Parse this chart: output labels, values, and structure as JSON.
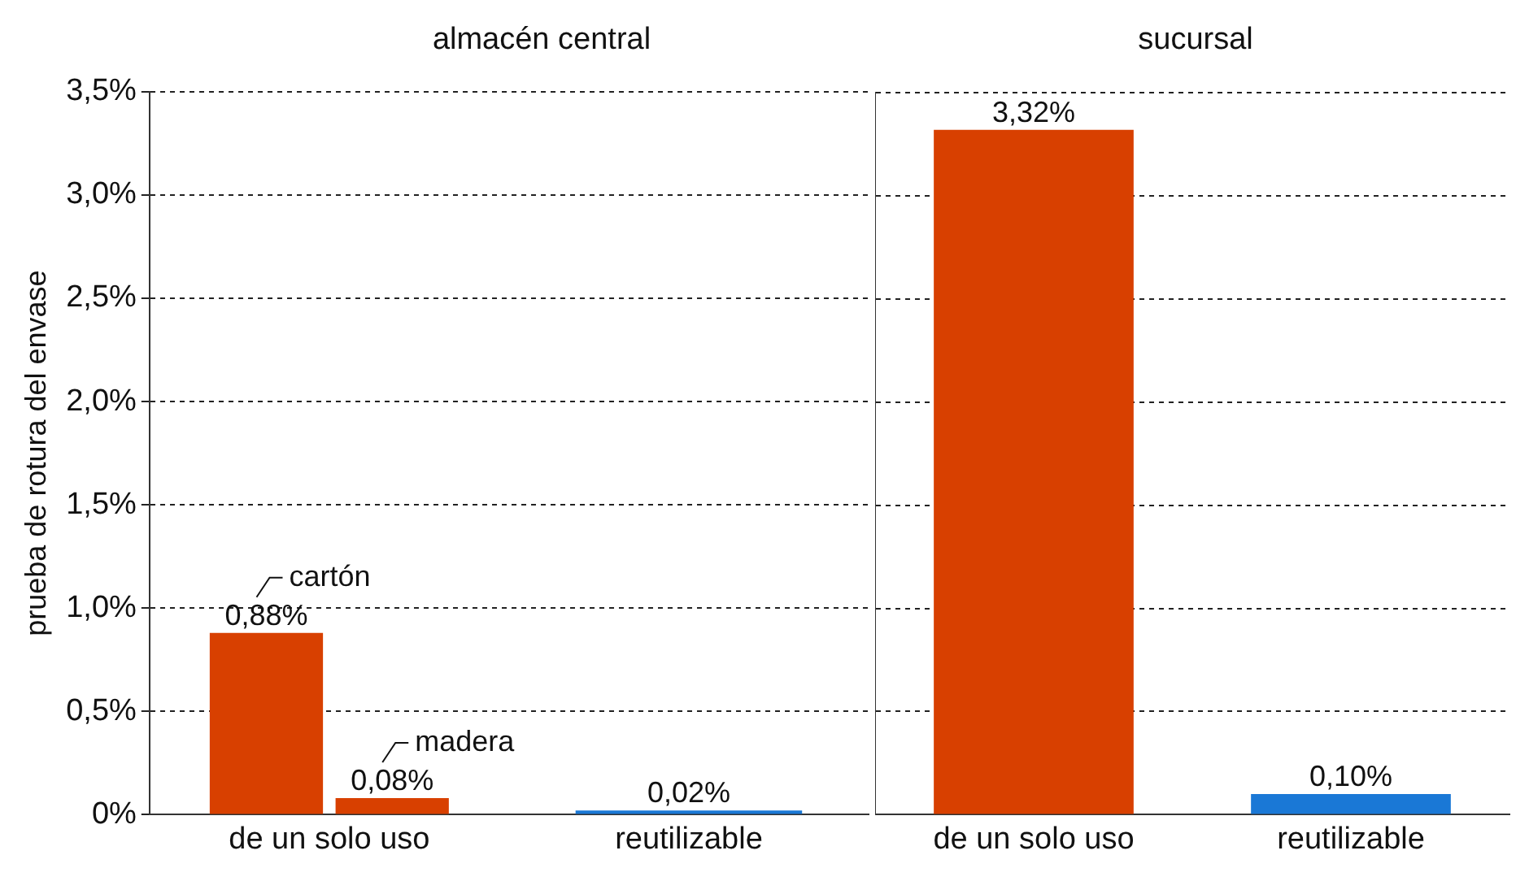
{
  "chart_data": [
    {
      "type": "bar",
      "title": "almacén central",
      "ylabel": "prueba de rotura del envase",
      "categories": [
        "de un solo uso",
        "reutilizable"
      ],
      "series": [
        {
          "name": "cartón",
          "color": "#d84000",
          "values": [
            0.88,
            null
          ],
          "value_labels": [
            "0,88%",
            null
          ]
        },
        {
          "name": "madera",
          "color": "#d84000",
          "values": [
            0.08,
            null
          ],
          "value_labels": [
            "0,08%",
            null
          ]
        },
        {
          "color": "#1a78d6",
          "values": [
            null,
            0.02
          ],
          "value_labels": [
            null,
            "0,02%"
          ]
        }
      ],
      "ylim": [
        0,
        3.5
      ],
      "yticks": [
        {
          "value": 0,
          "label": "0%"
        },
        {
          "value": 0.5,
          "label": "0,5%"
        },
        {
          "value": 1,
          "label": "1,0%"
        },
        {
          "value": 1.5,
          "label": "1,5%"
        },
        {
          "value": 2,
          "label": "2,0%"
        },
        {
          "value": 2.5,
          "label": "2,5%"
        },
        {
          "value": 3,
          "label": "3,0%"
        },
        {
          "value": 3.5,
          "label": "3,5%"
        }
      ],
      "grid": "y",
      "legend": false
    },
    {
      "type": "bar",
      "title": "sucursal",
      "categories": [
        "de un solo uso",
        "reutilizable"
      ],
      "values": [
        3.32,
        0.1
      ],
      "colors": [
        "#d84000",
        "#1a78d6"
      ],
      "value_labels": [
        "3,32%",
        "0,10%"
      ],
      "ylim": [
        0,
        3.5
      ],
      "yticks": [
        0,
        0.5,
        1,
        1.5,
        2,
        2.5,
        3,
        3.5
      ],
      "grid": "y",
      "legend": false,
      "tick_labels": "x"
    }
  ]
}
